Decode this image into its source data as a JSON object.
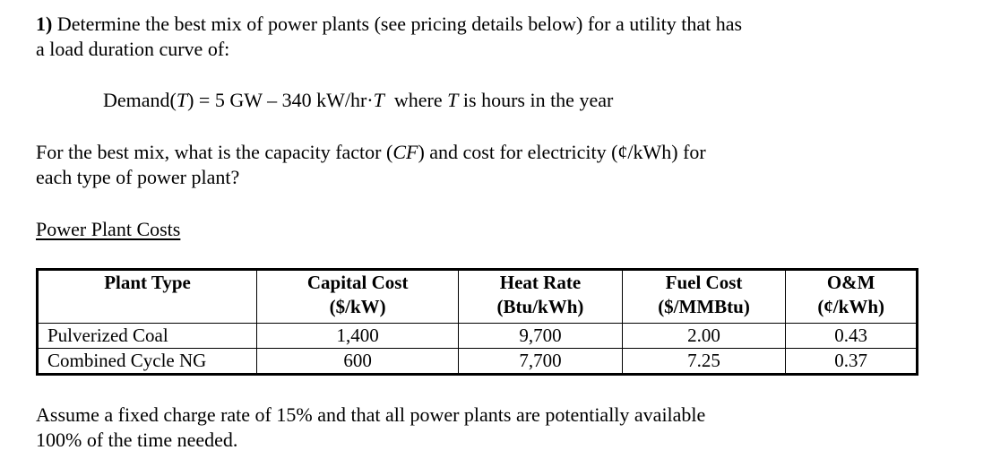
{
  "problem": {
    "number": "1)",
    "intro_line1": "Determine the best mix of power plants (see pricing details below) for a utility that has",
    "intro_line2": "a load duration curve of:",
    "equation": {
      "lhs_prefix": "Demand(",
      "lhs_var": "T",
      "lhs_suffix": ") = 5 GW – 340 kW/hr·",
      "rhs_var": "T",
      "where_prefix": "  where ",
      "where_var": "T",
      "where_suffix": " is hours in the year"
    },
    "question_line1_a": "For the best mix, what is the capacity factor (",
    "question_line1_cf": "CF",
    "question_line1_b": ") and cost for electricity (¢/kWh) for",
    "question_line2": "each type of power plant?",
    "table_caption": "Power Plant Costs",
    "table": {
      "headers": [
        {
          "line1": "Plant Type",
          "line2": ""
        },
        {
          "line1": "Capital Cost",
          "line2": "($/kW)"
        },
        {
          "line1": "Heat Rate",
          "line2": "(Btu/kWh)"
        },
        {
          "line1": "Fuel Cost",
          "line2": "($/MMBtu)"
        },
        {
          "line1": "O&M",
          "line2": "(¢/kWh)"
        }
      ],
      "rows": [
        {
          "plant": "Pulverized Coal",
          "capital": "1,400",
          "heat_rate": "9,700",
          "fuel": "2.00",
          "om": "0.43"
        },
        {
          "plant": "Combined Cycle NG",
          "capital": "600",
          "heat_rate": "7,700",
          "fuel": "7.25",
          "om": "0.37"
        }
      ]
    },
    "assume_line1": "Assume a fixed charge rate of 15% and that all power plants are potentially available",
    "assume_line2": "100% of the time needed."
  }
}
